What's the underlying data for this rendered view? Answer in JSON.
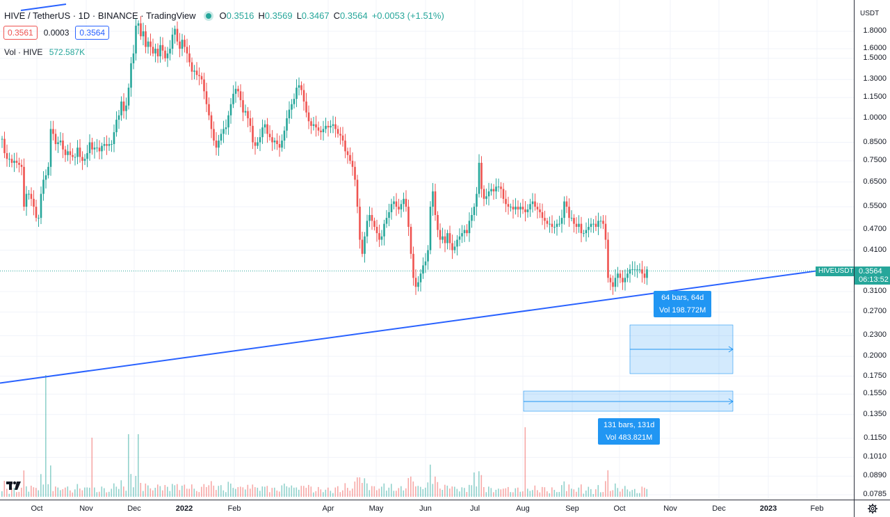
{
  "header": {
    "title": "HIVE / TetherUS · 1D · BINANCE · TradingView",
    "ohlc": [
      {
        "k": "O",
        "v": "0.3516"
      },
      {
        "k": "H",
        "v": "0.3569"
      },
      {
        "k": "L",
        "v": "0.3467"
      },
      {
        "k": "C",
        "v": "0.3564"
      }
    ],
    "change": "+0.0053 (+1.51%)",
    "bid": "0.3561",
    "spread": "0.0003",
    "ask": "0.3564",
    "volume_label": "Vol · HIVE",
    "volume_value": "572.587K"
  },
  "price_scale": {
    "currency": "USDT",
    "ticks": [
      "1.8000",
      "1.6000",
      "1.5000",
      "1.3000",
      "1.1500",
      "1.0000",
      "0.8500",
      "0.7500",
      "0.6500",
      "0.5500",
      "0.4700",
      "0.4100",
      "0.3564",
      "0.3100",
      "0.2700",
      "0.2300",
      "0.2000",
      "0.1750",
      "0.1550",
      "0.1350",
      "0.1150",
      "0.1010",
      "0.0890",
      "0.0785"
    ],
    "last_price": "0.3564",
    "countdown": "06:13:52",
    "symbol_tag": "HIVEUSDT"
  },
  "time_scale": {
    "labels": [
      "Oct",
      "Nov",
      "Dec",
      "2022",
      "Feb",
      "Apr",
      "May",
      "Jun",
      "Jul",
      "Aug",
      "Sep",
      "Oct",
      "Nov",
      "Dec",
      "2023",
      "Feb"
    ]
  },
  "measure_tools": [
    {
      "bars": "64 bars, 64d",
      "vol": "Vol 198.772M"
    },
    {
      "bars": "131 bars, 131d",
      "vol": "Vol 483.821M"
    }
  ],
  "colors": {
    "up": "#26a69a",
    "down": "#ef5350",
    "trendline": "#2962ff",
    "measure": "#2196f3"
  },
  "icons": {
    "logo": "tradingview-logo-icon",
    "settings": "gear-icon"
  },
  "chart_data": {
    "type": "candlestick",
    "symbol": "HIVEUSDT",
    "scale": "log",
    "ylim": [
      0.0785,
      1.95
    ],
    "x_start": "2021-09-12",
    "close": [
      0.87,
      0.79,
      0.76,
      0.76,
      0.74,
      0.75,
      0.74,
      0.73,
      0.72,
      0.55,
      0.6,
      0.6,
      0.58,
      0.55,
      0.51,
      0.51,
      0.6,
      0.66,
      0.68,
      0.72,
      0.93,
      0.9,
      0.84,
      0.85,
      0.86,
      0.81,
      0.78,
      0.8,
      0.78,
      0.77,
      0.77,
      0.82,
      0.77,
      0.75,
      0.76,
      0.79,
      0.85,
      0.81,
      0.82,
      0.82,
      0.8,
      0.83,
      0.84,
      0.83,
      0.84,
      0.84,
      0.91,
      0.99,
      1.02,
      1.12,
      1.05,
      1.09,
      1.23,
      1.45,
      1.55,
      1.87,
      1.9,
      1.74,
      1.8,
      1.62,
      1.68,
      1.62,
      1.55,
      1.6,
      1.52,
      1.64,
      1.58,
      1.5,
      1.55,
      1.6,
      1.76,
      1.83,
      1.68,
      1.6,
      1.7,
      1.62,
      1.55,
      1.46,
      1.37,
      1.38,
      1.34,
      1.33,
      1.3,
      1.2,
      1.1,
      1.02,
      0.93,
      0.86,
      0.82,
      0.86,
      0.9,
      0.93,
      0.94,
      1.02,
      1.1,
      1.18,
      1.22,
      1.2,
      1.13,
      1.04,
      1.05,
      1.0,
      0.95,
      0.85,
      0.83,
      0.85,
      0.88,
      0.94,
      0.96,
      0.9,
      0.88,
      0.85,
      0.86,
      0.84,
      0.82,
      0.86,
      0.92,
      1.0,
      1.06,
      1.1,
      1.14,
      1.23,
      1.25,
      1.21,
      1.12,
      1.04,
      0.98,
      0.95,
      0.96,
      0.94,
      0.92,
      0.91,
      0.93,
      0.95,
      0.94,
      0.95,
      0.96,
      0.93,
      0.9,
      0.89,
      0.86,
      0.8,
      0.78,
      0.75,
      0.72,
      0.66,
      0.55,
      0.44,
      0.4,
      0.45,
      0.5,
      0.52,
      0.5,
      0.48,
      0.46,
      0.44,
      0.45,
      0.49,
      0.51,
      0.53,
      0.56,
      0.57,
      0.55,
      0.54,
      0.56,
      0.58,
      0.55,
      0.48,
      0.4,
      0.34,
      0.32,
      0.33,
      0.35,
      0.37,
      0.38,
      0.41,
      0.55,
      0.61,
      0.52,
      0.47,
      0.44,
      0.45,
      0.43,
      0.46,
      0.43,
      0.41,
      0.42,
      0.44,
      0.45,
      0.46,
      0.47,
      0.46,
      0.5,
      0.52,
      0.55,
      0.6,
      0.74,
      0.62,
      0.58,
      0.59,
      0.61,
      0.62,
      0.61,
      0.63,
      0.63,
      0.62,
      0.58,
      0.56,
      0.55,
      0.55,
      0.54,
      0.55,
      0.54,
      0.55,
      0.54,
      0.53,
      0.54,
      0.56,
      0.57,
      0.55,
      0.54,
      0.53,
      0.51,
      0.5,
      0.49,
      0.49,
      0.48,
      0.48,
      0.49,
      0.49,
      0.51,
      0.57,
      0.55,
      0.51,
      0.51,
      0.49,
      0.48,
      0.49,
      0.46,
      0.46,
      0.47,
      0.48,
      0.49,
      0.49,
      0.48,
      0.5,
      0.5,
      0.49,
      0.44,
      0.34,
      0.33,
      0.32,
      0.34,
      0.35,
      0.34,
      0.33,
      0.34,
      0.35,
      0.36,
      0.36,
      0.36,
      0.36,
      0.36,
      0.35,
      0.34,
      0.36
    ],
    "volume_spikes": {
      "Oct 2021": "large",
      "Dec 2021": "large",
      "Aug 2022": "large"
    },
    "trendline": {
      "from_price": 0.167,
      "to_price": 0.356
    },
    "current_price_line": 0.3564
  }
}
